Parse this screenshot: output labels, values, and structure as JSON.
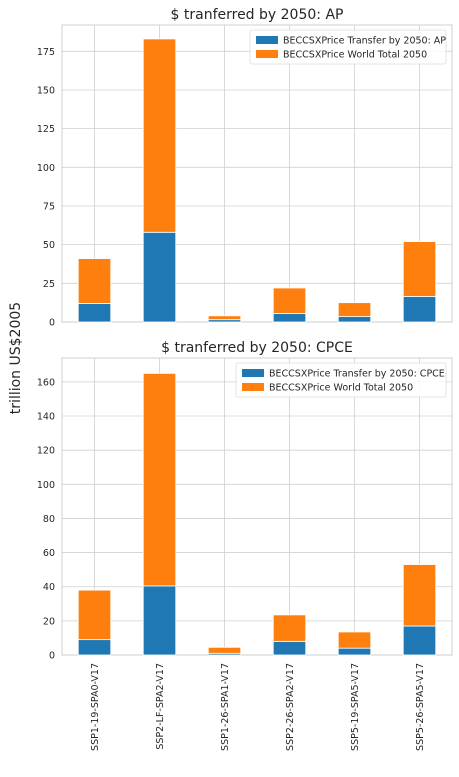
{
  "figure": {
    "ylabel": "trillion US$2005"
  },
  "colors": {
    "transfer": "#1f77b4",
    "world": "#ff7f0e"
  },
  "chart_data": [
    {
      "type": "bar",
      "stacked": true,
      "title": "$ tranferred by 2050: AP",
      "categories": [
        "SSP1-19-SPA0-V17",
        "SSP2-LF-SPA2-V17",
        "SSP1-26-SPA1-V17",
        "SSP2-26-SPA2-V17",
        "SSP5-19-SPA5-V17",
        "SSP5-26-SPA5-V17"
      ],
      "series": [
        {
          "name": "BECCSXPrice Transfer by 2050: AP",
          "values": [
            12,
            58,
            1.5,
            5.5,
            3.5,
            16.5
          ]
        },
        {
          "name": "BECCSXPrice World Total 2050",
          "values": [
            29,
            125,
            2.5,
            16.5,
            9,
            35.5
          ]
        }
      ],
      "ylim": [
        0,
        192
      ],
      "yticks": [
        0,
        25,
        50,
        75,
        100,
        125,
        150,
        175
      ],
      "grid": true,
      "legend": "top-right",
      "show_xticklabels": false
    },
    {
      "type": "bar",
      "stacked": true,
      "title": "$ tranferred by 2050: CPCE",
      "categories": [
        "SSP1-19-SPA0-V17",
        "SSP2-LF-SPA2-V17",
        "SSP1-26-SPA1-V17",
        "SSP2-26-SPA2-V17",
        "SSP5-19-SPA5-V17",
        "SSP5-26-SPA5-V17"
      ],
      "series": [
        {
          "name": "BECCSXPrice Transfer by 2050: CPCE",
          "values": [
            9,
            40.5,
            1,
            8,
            4,
            17
          ]
        },
        {
          "name": "BECCSXPrice World Total 2050",
          "values": [
            29,
            124.5,
            3.5,
            15.5,
            9.5,
            36
          ]
        }
      ],
      "ylim": [
        0,
        174
      ],
      "yticks": [
        0,
        20,
        40,
        60,
        80,
        100,
        120,
        140,
        160
      ],
      "grid": true,
      "legend": "top-right",
      "show_xticklabels": true
    }
  ]
}
